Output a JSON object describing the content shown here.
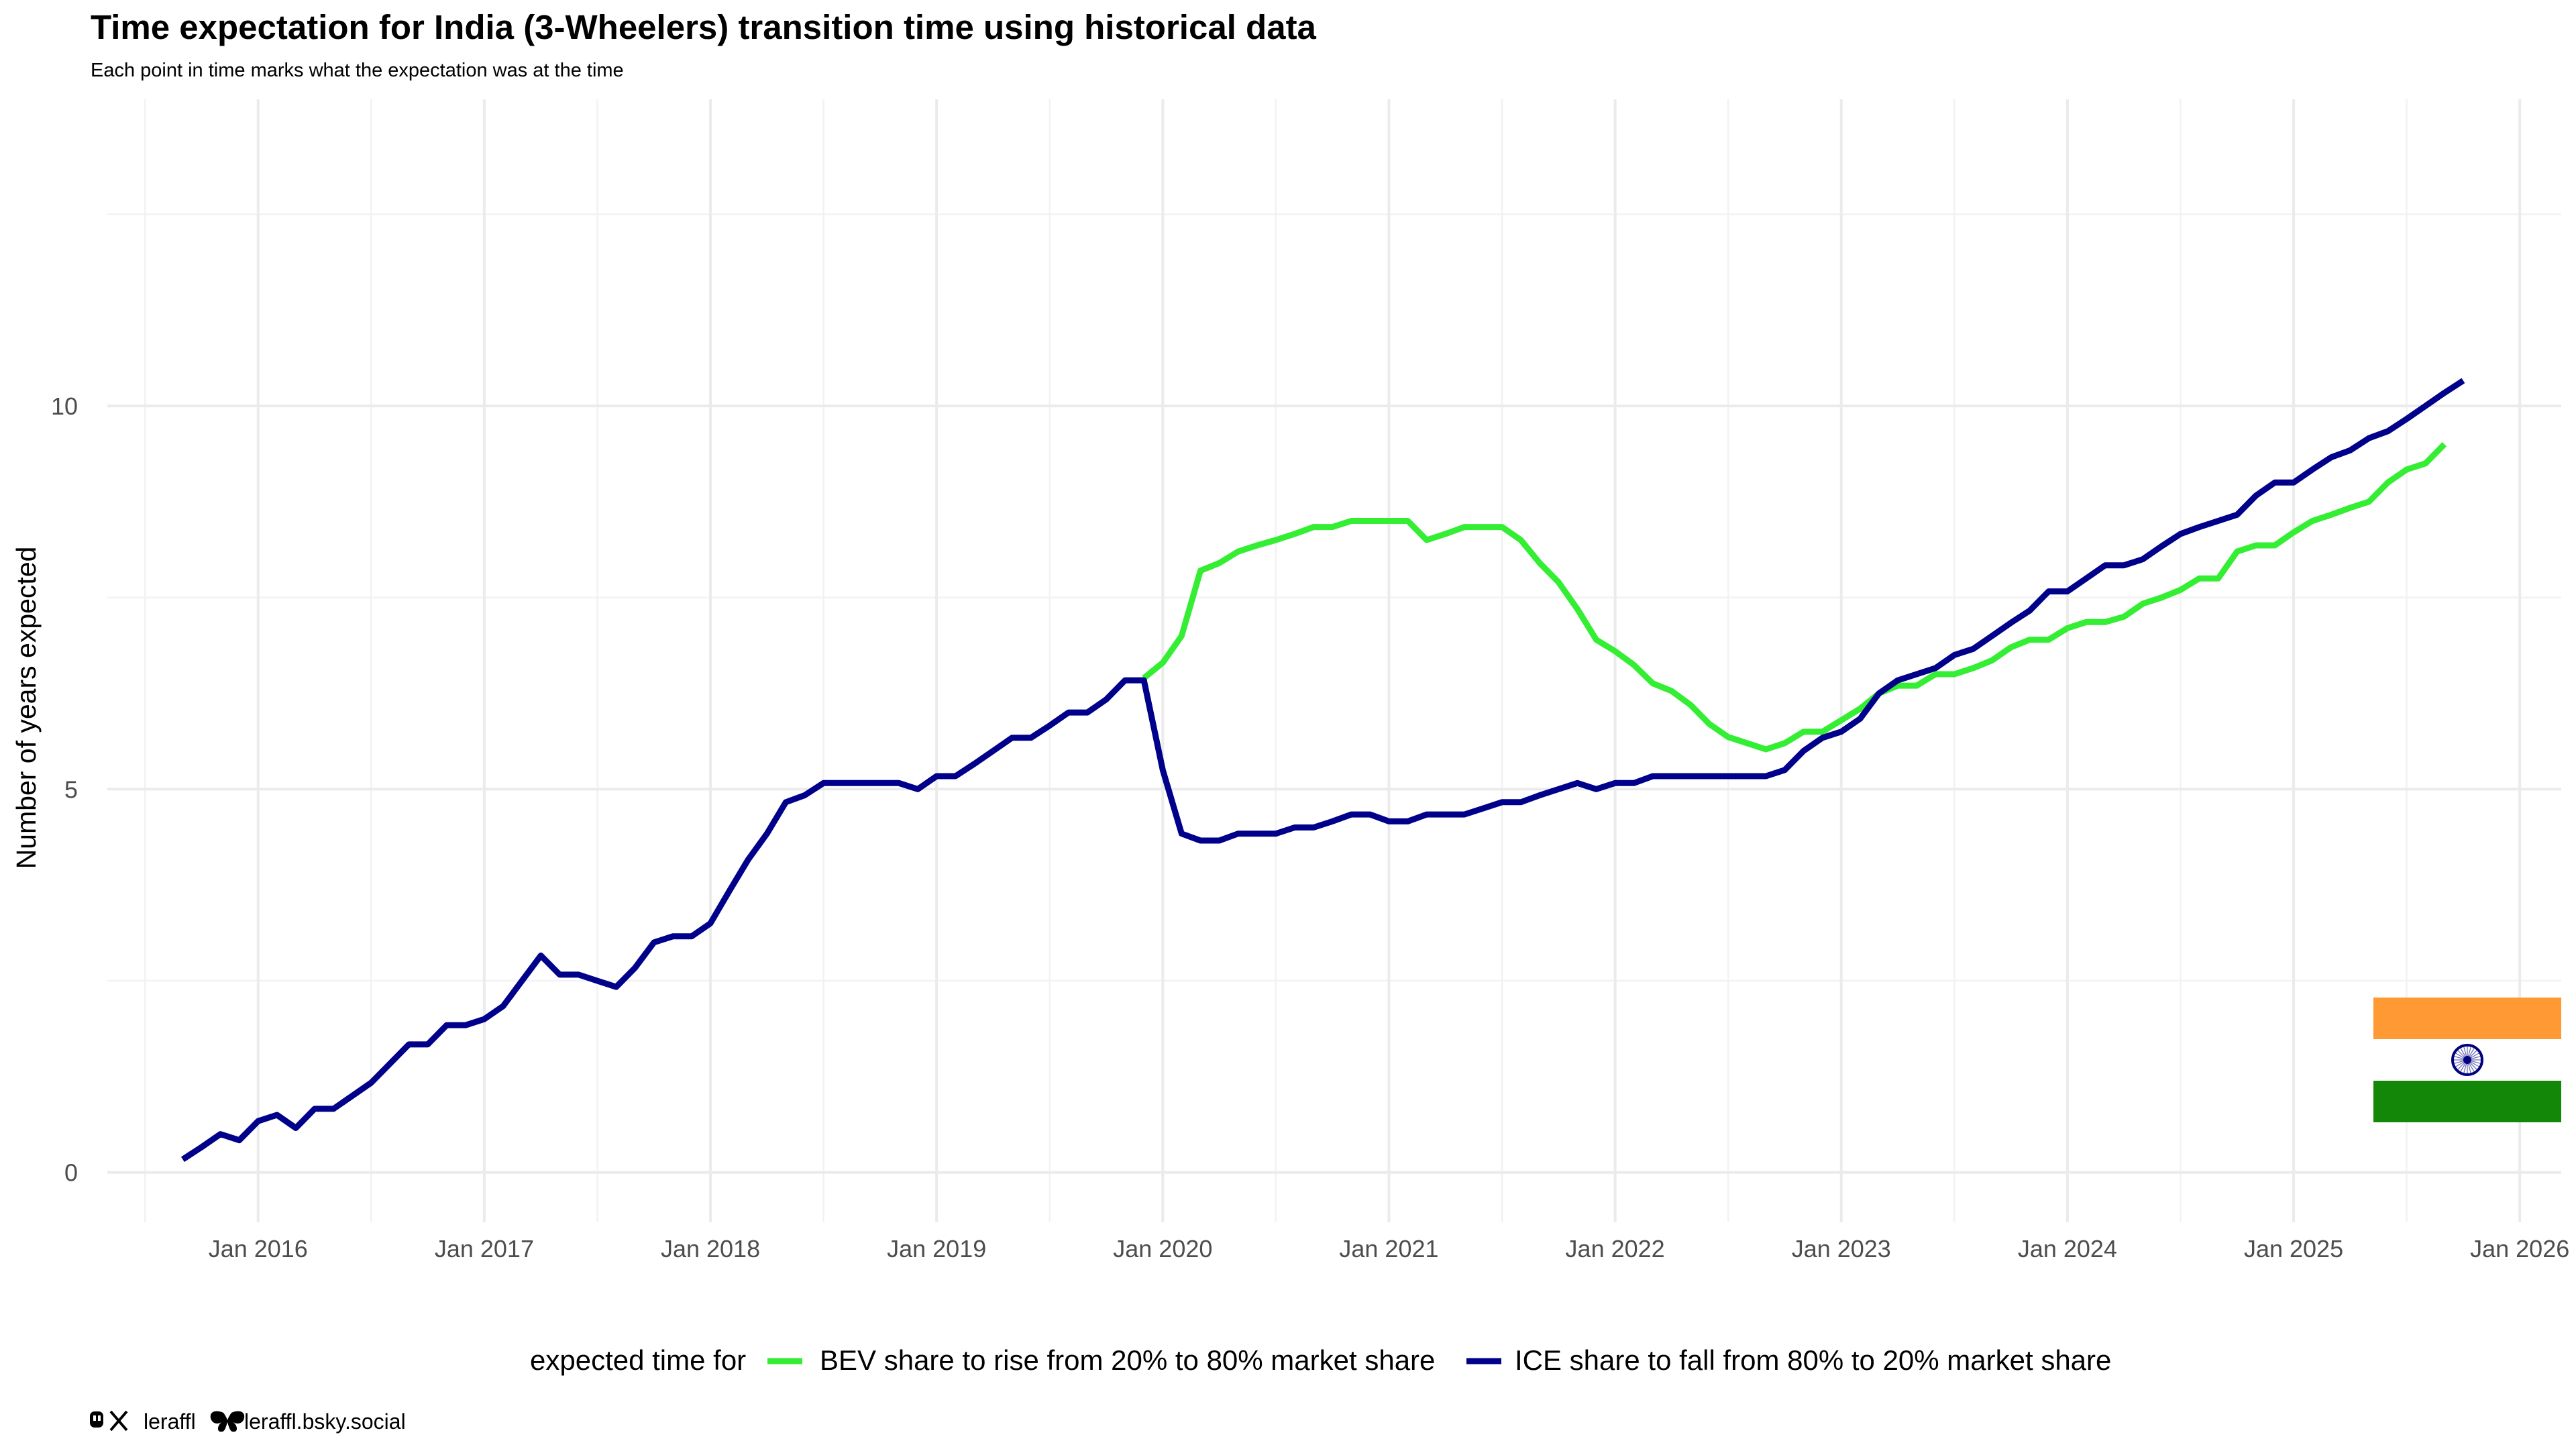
{
  "chart_data": {
    "type": "line",
    "title": "Time expectation for India (3-Wheelers) transition time using historical data",
    "subtitle": "Each point in time marks what the expectation was at the time",
    "xlabel": "",
    "ylabel": "Number of years expected",
    "ylim": [
      -0.65,
      14
    ],
    "y_ticks": [
      0,
      5,
      10
    ],
    "x_ticks": [
      "Jan 2016",
      "Jan 2017",
      "Jan 2018",
      "Jan 2019",
      "Jan 2020",
      "Jan 2021",
      "Jan 2022",
      "Jan 2023",
      "Jan 2024",
      "Jan 2025",
      "Jan 2026"
    ],
    "grid": true,
    "legend": {
      "position": "bottom",
      "title": "expected time for",
      "entries": [
        "BEV share to rise from 20% to 80% market share",
        "ICE share to fall from 80% to 20% market share"
      ]
    },
    "series": [
      {
        "color": "#33ee33",
        "points": [
          [
            "2019-12",
            6.45
          ],
          [
            "2020-01",
            6.65
          ],
          [
            "2020-02",
            7.0
          ],
          [
            "2020-03",
            7.85
          ],
          [
            "2020-04",
            7.95
          ],
          [
            "2020-05",
            8.1
          ],
          [
            "2020-06",
            8.18
          ],
          [
            "2020-07",
            8.25
          ],
          [
            "2020-08",
            8.33
          ],
          [
            "2020-09",
            8.42
          ],
          [
            "2020-10",
            8.42
          ],
          [
            "2020-11",
            8.5
          ],
          [
            "2020-12",
            8.5
          ],
          [
            "2021-01",
            8.5
          ],
          [
            "2021-02",
            8.5
          ],
          [
            "2021-03",
            8.25
          ],
          [
            "2021-04",
            8.33
          ],
          [
            "2021-05",
            8.42
          ],
          [
            "2021-06",
            8.42
          ],
          [
            "2021-07",
            8.42
          ],
          [
            "2021-08",
            8.25
          ],
          [
            "2021-09",
            7.95
          ],
          [
            "2021-10",
            7.7
          ],
          [
            "2021-11",
            7.35
          ],
          [
            "2021-12",
            6.95
          ],
          [
            "2022-01",
            6.8
          ],
          [
            "2022-02",
            6.62
          ],
          [
            "2022-03",
            6.38
          ],
          [
            "2022-04",
            6.28
          ],
          [
            "2022-05",
            6.1
          ],
          [
            "2022-06",
            5.85
          ],
          [
            "2022-07",
            5.68
          ],
          [
            "2022-08",
            5.6
          ],
          [
            "2022-09",
            5.52
          ],
          [
            "2022-10",
            5.6
          ],
          [
            "2022-11",
            5.75
          ],
          [
            "2022-12",
            5.75
          ],
          [
            "2023-01",
            5.9
          ],
          [
            "2023-02",
            6.05
          ],
          [
            "2023-03",
            6.25
          ],
          [
            "2023-04",
            6.35
          ],
          [
            "2023-05",
            6.35
          ],
          [
            "2023-06",
            6.5
          ],
          [
            "2023-07",
            6.5
          ],
          [
            "2023-08",
            6.58
          ],
          [
            "2023-09",
            6.68
          ],
          [
            "2023-10",
            6.85
          ],
          [
            "2023-11",
            6.95
          ],
          [
            "2023-12",
            6.95
          ],
          [
            "2024-01",
            7.1
          ],
          [
            "2024-02",
            7.18
          ],
          [
            "2024-03",
            7.18
          ],
          [
            "2024-04",
            7.25
          ],
          [
            "2024-05",
            7.42
          ],
          [
            "2024-06",
            7.5
          ],
          [
            "2024-07",
            7.6
          ],
          [
            "2024-08",
            7.75
          ],
          [
            "2024-09",
            7.75
          ],
          [
            "2024-10",
            8.1
          ],
          [
            "2024-11",
            8.18
          ],
          [
            "2024-12",
            8.18
          ],
          [
            "2025-01",
            8.35
          ],
          [
            "2025-02",
            8.5
          ],
          [
            "2025-03",
            8.58
          ],
          [
            "2025-04",
            8.67
          ],
          [
            "2025-05",
            8.75
          ],
          [
            "2025-06",
            9.0
          ],
          [
            "2025-07",
            9.17
          ],
          [
            "2025-08",
            9.25
          ],
          [
            "2025-09",
            9.5
          ]
        ]
      },
      {
        "color": "#00008b",
        "points": [
          [
            "2015-09",
            0.17
          ],
          [
            "2015-10",
            0.33
          ],
          [
            "2015-11",
            0.5
          ],
          [
            "2015-12",
            0.42
          ],
          [
            "2016-01",
            0.67
          ],
          [
            "2016-02",
            0.75
          ],
          [
            "2016-03",
            0.58
          ],
          [
            "2016-04",
            0.83
          ],
          [
            "2016-05",
            0.83
          ],
          [
            "2016-06",
            1.0
          ],
          [
            "2016-07",
            1.17
          ],
          [
            "2016-08",
            1.42
          ],
          [
            "2016-09",
            1.67
          ],
          [
            "2016-10",
            1.67
          ],
          [
            "2016-11",
            1.92
          ],
          [
            "2016-12",
            1.92
          ],
          [
            "2017-01",
            2.0
          ],
          [
            "2017-02",
            2.17
          ],
          [
            "2017-03",
            2.5
          ],
          [
            "2017-04",
            2.83
          ],
          [
            "2017-05",
            2.58
          ],
          [
            "2017-06",
            2.58
          ],
          [
            "2017-07",
            2.5
          ],
          [
            "2017-08",
            2.42
          ],
          [
            "2017-09",
            2.67
          ],
          [
            "2017-10",
            3.0
          ],
          [
            "2017-11",
            3.08
          ],
          [
            "2017-12",
            3.08
          ],
          [
            "2018-01",
            3.25
          ],
          [
            "2018-02",
            3.67
          ],
          [
            "2018-03",
            4.08
          ],
          [
            "2018-04",
            4.42
          ],
          [
            "2018-05",
            4.83
          ],
          [
            "2018-06",
            4.92
          ],
          [
            "2018-07",
            5.08
          ],
          [
            "2018-08",
            5.08
          ],
          [
            "2018-09",
            5.08
          ],
          [
            "2018-10",
            5.08
          ],
          [
            "2018-11",
            5.08
          ],
          [
            "2018-12",
            5.0
          ],
          [
            "2019-01",
            5.17
          ],
          [
            "2019-02",
            5.17
          ],
          [
            "2019-03",
            5.33
          ],
          [
            "2019-04",
            5.5
          ],
          [
            "2019-05",
            5.67
          ],
          [
            "2019-06",
            5.67
          ],
          [
            "2019-07",
            5.83
          ],
          [
            "2019-08",
            6.0
          ],
          [
            "2019-09",
            6.0
          ],
          [
            "2019-10",
            6.17
          ],
          [
            "2019-11",
            6.42
          ],
          [
            "2019-12",
            6.42
          ],
          [
            "2020-01",
            5.25
          ],
          [
            "2020-02",
            4.42
          ],
          [
            "2020-03",
            4.33
          ],
          [
            "2020-04",
            4.33
          ],
          [
            "2020-05",
            4.42
          ],
          [
            "2020-06",
            4.42
          ],
          [
            "2020-07",
            4.42
          ],
          [
            "2020-08",
            4.5
          ],
          [
            "2020-09",
            4.5
          ],
          [
            "2020-10",
            4.58
          ],
          [
            "2020-11",
            4.67
          ],
          [
            "2020-12",
            4.67
          ],
          [
            "2021-01",
            4.58
          ],
          [
            "2021-02",
            4.58
          ],
          [
            "2021-03",
            4.67
          ],
          [
            "2021-04",
            4.67
          ],
          [
            "2021-05",
            4.67
          ],
          [
            "2021-06",
            4.75
          ],
          [
            "2021-07",
            4.83
          ],
          [
            "2021-08",
            4.83
          ],
          [
            "2021-09",
            4.92
          ],
          [
            "2021-10",
            5.0
          ],
          [
            "2021-11",
            5.08
          ],
          [
            "2021-12",
            5.0
          ],
          [
            "2022-01",
            5.08
          ],
          [
            "2022-02",
            5.08
          ],
          [
            "2022-03",
            5.17
          ],
          [
            "2022-04",
            5.17
          ],
          [
            "2022-05",
            5.17
          ],
          [
            "2022-06",
            5.17
          ],
          [
            "2022-07",
            5.17
          ],
          [
            "2022-08",
            5.17
          ],
          [
            "2022-09",
            5.17
          ],
          [
            "2022-10",
            5.25
          ],
          [
            "2022-11",
            5.5
          ],
          [
            "2022-12",
            5.67
          ],
          [
            "2023-01",
            5.75
          ],
          [
            "2023-02",
            5.92
          ],
          [
            "2023-03",
            6.25
          ],
          [
            "2023-04",
            6.42
          ],
          [
            "2023-05",
            6.5
          ],
          [
            "2023-06",
            6.58
          ],
          [
            "2023-07",
            6.75
          ],
          [
            "2023-08",
            6.83
          ],
          [
            "2023-09",
            7.0
          ],
          [
            "2023-10",
            7.17
          ],
          [
            "2023-11",
            7.33
          ],
          [
            "2023-12",
            7.58
          ],
          [
            "2024-01",
            7.58
          ],
          [
            "2024-02",
            7.75
          ],
          [
            "2024-03",
            7.92
          ],
          [
            "2024-04",
            7.92
          ],
          [
            "2024-05",
            8.0
          ],
          [
            "2024-06",
            8.17
          ],
          [
            "2024-07",
            8.33
          ],
          [
            "2024-08",
            8.42
          ],
          [
            "2024-09",
            8.5
          ],
          [
            "2024-10",
            8.58
          ],
          [
            "2024-11",
            8.83
          ],
          [
            "2024-12",
            9.0
          ],
          [
            "2025-01",
            9.0
          ],
          [
            "2025-02",
            9.17
          ],
          [
            "2025-03",
            9.33
          ],
          [
            "2025-04",
            9.42
          ],
          [
            "2025-05",
            9.58
          ],
          [
            "2025-06",
            9.67
          ],
          [
            "2025-07",
            9.83
          ],
          [
            "2025-08",
            10.0
          ],
          [
            "2025-09",
            10.17
          ],
          [
            "2025-10",
            10.33
          ]
        ]
      }
    ]
  },
  "caption": {
    "handle": "leraffl",
    "bluesky": "leraffl.bsky.social",
    "icons": [
      "mastodon-icon",
      "x-icon",
      "bluesky-icon"
    ]
  },
  "flag": {
    "icon": "india-flag-icon",
    "colors": {
      "saffron": "#ff9933",
      "white": "#ffffff",
      "green": "#138808",
      "chakra": "#000080"
    }
  }
}
